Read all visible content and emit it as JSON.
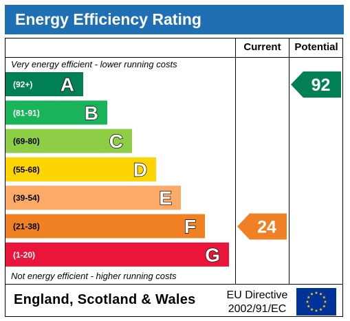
{
  "title": "Energy Efficiency Rating",
  "columns": {
    "current": "Current",
    "potential": "Potential"
  },
  "top_note": "Very energy efficient - lower running costs",
  "bottom_note": "Not energy efficient - higher running costs",
  "footer": {
    "region": "England, Scotland & Wales",
    "directive_line1": "EU Directive",
    "directive_line2": "2002/91/EC"
  },
  "colors": {
    "title_bar": "#1f6fb5",
    "A": "#008054",
    "B": "#19b459",
    "C": "#8dce46",
    "D": "#ffd500",
    "E": "#fcaa65",
    "F": "#ef8023",
    "G": "#e9153b",
    "eu_blue": "#003399",
    "eu_star": "#ffcc00"
  },
  "chart_data": {
    "type": "bar",
    "bands": [
      {
        "letter": "A",
        "range": "(92+)"
      },
      {
        "letter": "B",
        "range": "(81-91)"
      },
      {
        "letter": "C",
        "range": "(69-80)"
      },
      {
        "letter": "D",
        "range": "(55-68)"
      },
      {
        "letter": "E",
        "range": "(39-54)"
      },
      {
        "letter": "F",
        "range": "(21-38)"
      },
      {
        "letter": "G",
        "range": "(1-20)"
      }
    ],
    "current": {
      "value": 24,
      "band": "F"
    },
    "potential": {
      "value": 92,
      "band": "A"
    }
  }
}
